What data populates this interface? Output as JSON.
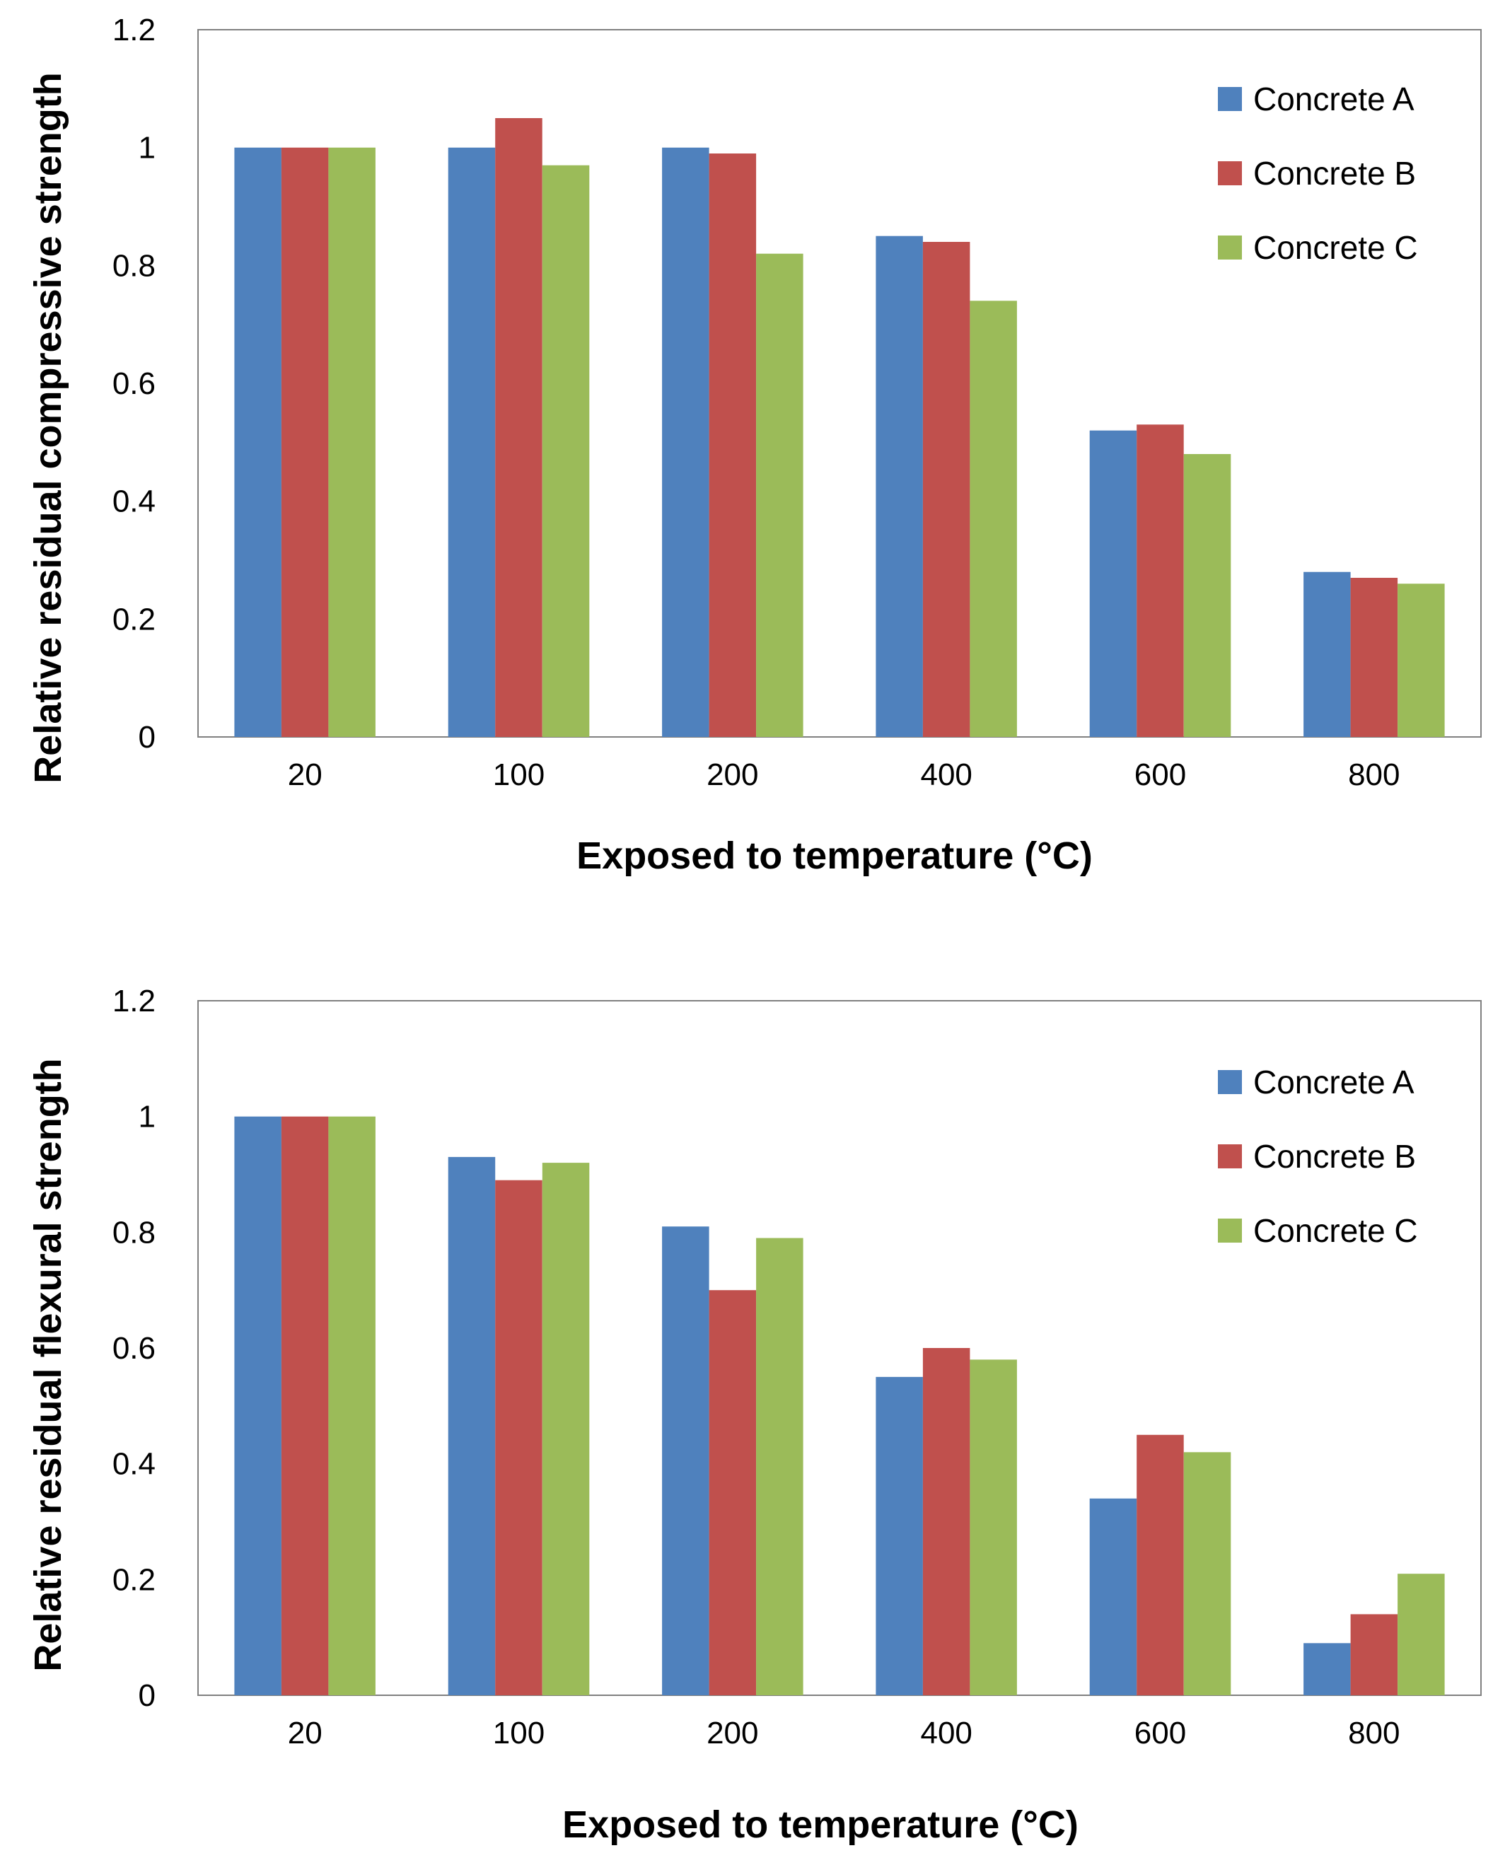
{
  "colors": {
    "concrete_a": "#4f81bd",
    "concrete_b": "#c0504d",
    "concrete_c": "#9bbb59",
    "frame": "#808080",
    "background": "#ffffff"
  },
  "chart_data": [
    {
      "type": "bar",
      "title": "",
      "xlabel": "Exposed to temperature (°C)",
      "ylabel": "Relative residual compressive strength",
      "categories": [
        "20",
        "100",
        "200",
        "400",
        "600",
        "800"
      ],
      "ylim": [
        0,
        1.2
      ],
      "yticks": [
        "0",
        "0.2",
        "0.4",
        "0.6",
        "0.8",
        "1",
        "1.2"
      ],
      "grid": false,
      "legend_position": "top-right",
      "series": [
        {
          "name": "Concrete A",
          "values": [
            1.0,
            1.0,
            1.0,
            0.85,
            0.52,
            0.28
          ]
        },
        {
          "name": "Concrete B",
          "values": [
            1.0,
            1.05,
            0.99,
            0.84,
            0.53,
            0.27
          ]
        },
        {
          "name": "Concrete C",
          "values": [
            1.0,
            0.97,
            0.82,
            0.74,
            0.48,
            0.26
          ]
        }
      ]
    },
    {
      "type": "bar",
      "title": "",
      "xlabel": "Exposed to temperature (°C)",
      "ylabel": "Relative residual flexural strength",
      "categories": [
        "20",
        "100",
        "200",
        "400",
        "600",
        "800"
      ],
      "ylim": [
        0,
        1.2
      ],
      "yticks": [
        "0",
        "0.2",
        "0.4",
        "0.6",
        "0.8",
        "1",
        "1.2"
      ],
      "grid": false,
      "legend_position": "top-right",
      "series": [
        {
          "name": "Concrete A",
          "values": [
            1.0,
            0.93,
            0.81,
            0.55,
            0.34,
            0.09
          ]
        },
        {
          "name": "Concrete B",
          "values": [
            1.0,
            0.89,
            0.7,
            0.6,
            0.45,
            0.14
          ]
        },
        {
          "name": "Concrete C",
          "values": [
            1.0,
            0.92,
            0.79,
            0.58,
            0.42,
            0.21
          ]
        }
      ]
    }
  ]
}
